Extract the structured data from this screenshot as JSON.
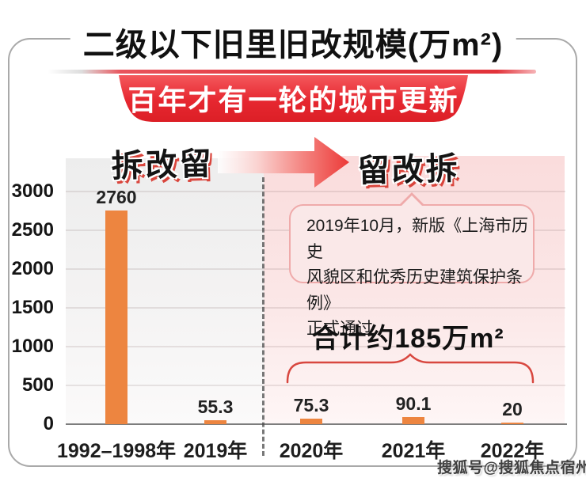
{
  "header": {
    "title": "二级以下旧里旧改规模(万m²)",
    "banner": "百年才有一轮的城市更新"
  },
  "stages": {
    "left": "拆改留",
    "right": "留改拆"
  },
  "callout": {
    "text": "2019年10月，新版《上海市历史\n风貌区和优秀历史建筑保护条例》\n正式通过"
  },
  "total": {
    "text": "合计约185万m²"
  },
  "watermark": {
    "text": "搜狐号@搜狐焦点宿州站"
  },
  "colors": {
    "bar": "#ED8540",
    "banner_red": "#E2242C",
    "accent_red": "#D8473F",
    "panel_left": "#EDEDED",
    "panel_right": "#FADCDC"
  },
  "chart_data": {
    "type": "bar",
    "title": "二级以下旧里旧改规模(万m²)",
    "unit": "万m²",
    "categories": [
      "1992–1998年",
      "2019年",
      "2020年",
      "2021年",
      "2022年"
    ],
    "values": [
      2760,
      55.3,
      75.3,
      90.1,
      20
    ],
    "yticks": [
      0,
      500,
      1000,
      1500,
      2000,
      2500,
      3000
    ],
    "ylim": [
      0,
      3000
    ],
    "grid": true,
    "legend": false,
    "group_labels": {
      "left": "拆改留",
      "right": "留改拆"
    },
    "divider_after_category_index": 1,
    "right_group_total_label": "合计约185万m²",
    "callout_annotation": "2019年10月，新版《上海市历史风貌区和优秀历史建筑保护条例》正式通过"
  }
}
